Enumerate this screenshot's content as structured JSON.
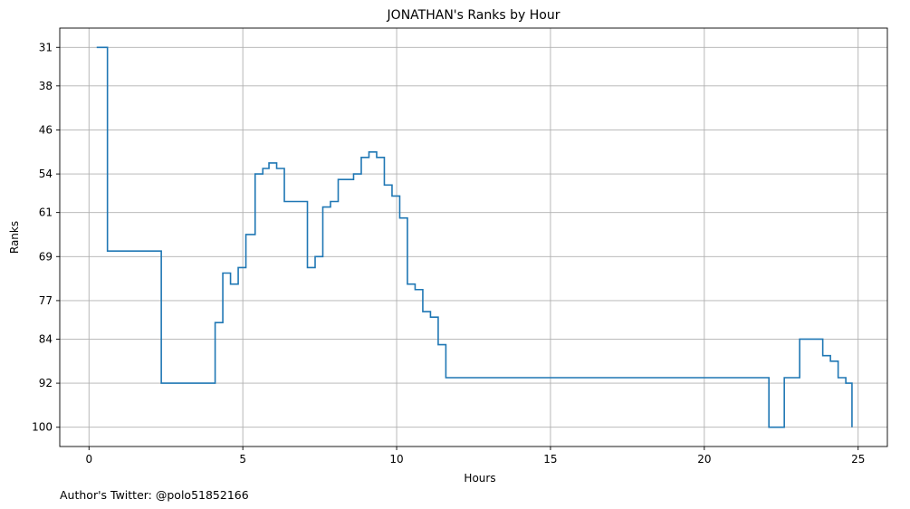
{
  "chart_data": {
    "type": "line",
    "step": "post",
    "title": "JONATHAN's Ranks by Hour",
    "xlabel": "Hours",
    "ylabel": "Ranks",
    "y_inverted": true,
    "grid": true,
    "xlim": [
      -0.95,
      25.95
    ],
    "ylim": [
      103.5,
      27.5
    ],
    "x_ticks": [
      0,
      5,
      10,
      15,
      20,
      25
    ],
    "y_ticks": [
      31,
      38,
      46,
      54,
      61,
      69,
      77,
      84,
      92,
      100
    ],
    "line_color": "#1f77b4",
    "x": [
      0.25,
      0.33,
      0.6,
      2.35,
      4.1,
      4.35,
      4.6,
      4.85,
      5.1,
      5.4,
      5.65,
      5.85,
      6.1,
      6.35,
      7.1,
      7.35,
      7.6,
      7.85,
      8.1,
      8.6,
      8.85,
      9.1,
      9.35,
      9.6,
      9.85,
      10.1,
      10.35,
      10.6,
      10.85,
      11.1,
      11.35,
      11.6,
      22.1,
      22.35,
      22.6,
      23.1,
      23.35,
      23.85,
      24.1,
      24.35,
      24.6,
      24.8
    ],
    "values": [
      31,
      31,
      68,
      92,
      81,
      72,
      74,
      71,
      65,
      54,
      53,
      52,
      53,
      59,
      71,
      69,
      60,
      59,
      55,
      54,
      51,
      50,
      51,
      56,
      58,
      62,
      74,
      75,
      79,
      80,
      85,
      91,
      100,
      100,
      91,
      84,
      84,
      87,
      88,
      91,
      92,
      100
    ]
  },
  "footer": {
    "credit": "Author's Twitter: @polo51852166"
  }
}
